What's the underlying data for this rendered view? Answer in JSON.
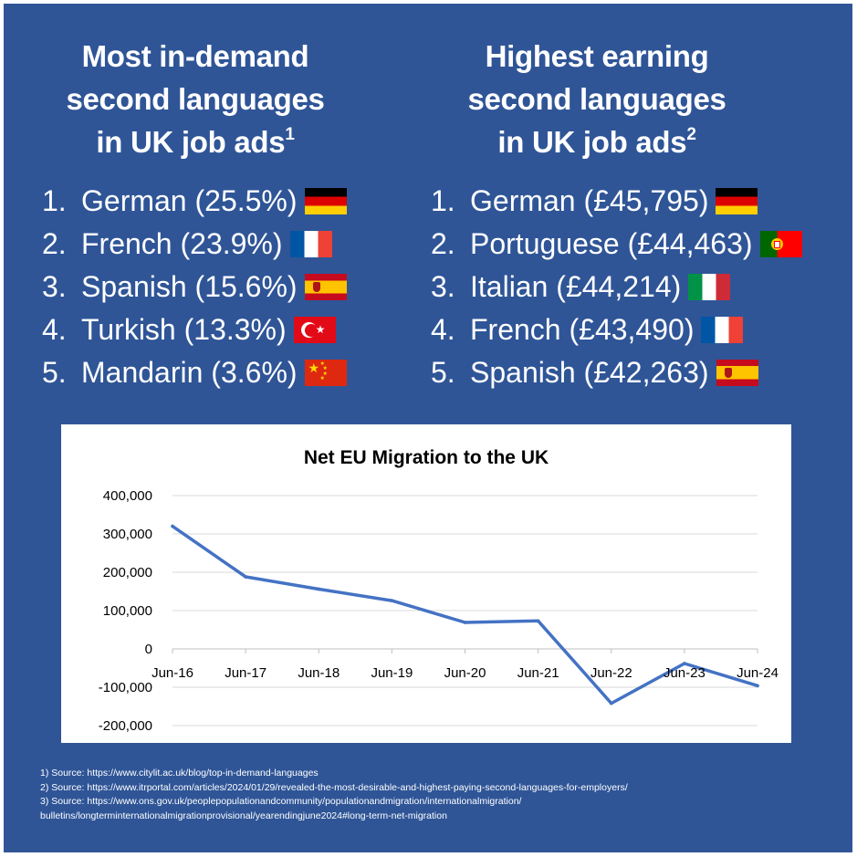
{
  "left_column": {
    "title_lines": [
      "Most in-demand",
      "second languages",
      "in UK job ads"
    ],
    "title_sup": "1",
    "items": [
      {
        "num": "1.",
        "label": "German (25.5%)",
        "flag": "de"
      },
      {
        "num": "2.",
        "label": "French (23.9%)",
        "flag": "fr"
      },
      {
        "num": "3.",
        "label": "Spanish (15.6%)",
        "flag": "es"
      },
      {
        "num": "4.",
        "label": "Turkish (13.3%)",
        "flag": "tr"
      },
      {
        "num": "5.",
        "label": "Mandarin (3.6%)",
        "flag": "cn"
      }
    ]
  },
  "right_column": {
    "title_lines": [
      "Highest earning",
      "second languages",
      "in UK job ads"
    ],
    "title_sup": "2",
    "items": [
      {
        "num": "1.",
        "label": "German (£45,795)",
        "flag": "de"
      },
      {
        "num": "2.",
        "label": "Portuguese (£44,463)",
        "flag": "pt"
      },
      {
        "num": "3.",
        "label": "Italian (£44,214)",
        "flag": "it"
      },
      {
        "num": "4.",
        "label": "French (£43,490)",
        "flag": "fr"
      },
      {
        "num": "5.",
        "label": "Spanish (£42,263)",
        "flag": "es"
      }
    ]
  },
  "chart_data": {
    "type": "line",
    "title": "Net EU Migration to the UK",
    "xlabel": "",
    "ylabel": "",
    "categories": [
      "Jun-16",
      "Jun-17",
      "Jun-18",
      "Jun-19",
      "Jun-20",
      "Jun-21",
      "Jun-22",
      "Jun-23",
      "Jun-24"
    ],
    "series": [
      {
        "name": "Net EU Migration",
        "values": [
          320000,
          188000,
          156000,
          126000,
          69000,
          73000,
          -142000,
          -38000,
          -96000
        ]
      }
    ],
    "ylim": [
      -200000,
      400000
    ],
    "yticks": [
      400000,
      300000,
      200000,
      100000,
      0,
      -100000,
      -200000
    ],
    "ytick_labels": [
      "400,000",
      "300,000",
      "200,000",
      "100,000",
      "0",
      "-100,000",
      "-200,000"
    ],
    "grid": true,
    "line_color": "#4472c4"
  },
  "footnotes": [
    "1) Source: https://www.citylit.ac.uk/blog/top-in-demand-languages",
    "2) Source: https://www.itrportal.com/articles/2024/01/29/revealed-the-most-desirable-and-highest-paying-second-languages-for-employers/",
    "3) Source: https://www.ons.gov.uk/peoplepopulationandcommunity/populationandmigration/internationalmigration/",
    "bulletins/longterminternationalmigrationprovisional/yearendingjune2024#long-term-net-migration"
  ],
  "colors": {
    "background": "#2f5597",
    "text": "#ffffff",
    "chart_line": "#4472c4"
  }
}
